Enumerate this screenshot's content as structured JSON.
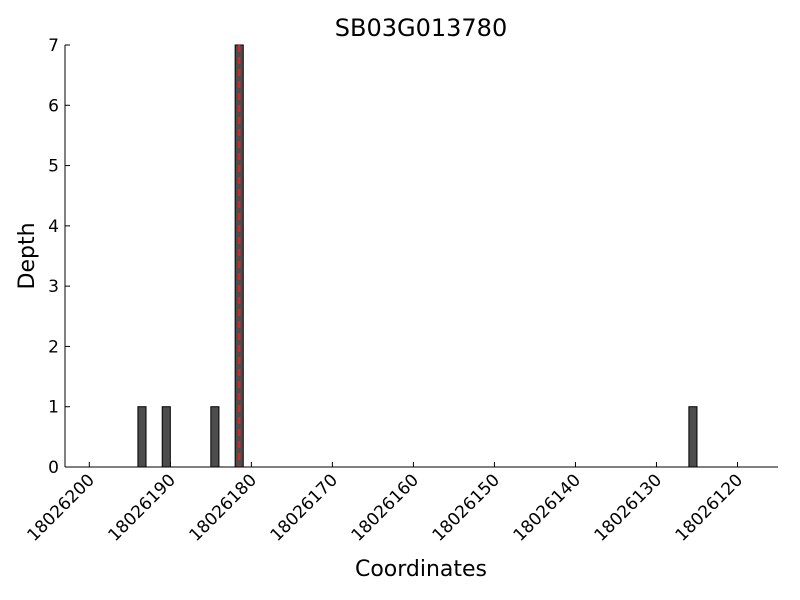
{
  "chart_data": {
    "type": "bar",
    "title": "SB03G013780",
    "x_label": "Coordinates",
    "y_label": "Depth",
    "x": [
      18026194,
      18026191,
      18026185,
      18026182,
      18026126
    ],
    "values": [
      1,
      1,
      1,
      7,
      1
    ],
    "color": "#4d4d4d",
    "xlim": [
      18026203,
      18026115
    ],
    "xticks": [
      18026200,
      18026190,
      18026180,
      18026170,
      18026160,
      18026150,
      18026140,
      18026130,
      18026120
    ],
    "ylim": [
      0,
      7
    ],
    "yticks": [
      0,
      1,
      2,
      3,
      4,
      5,
      6,
      7
    ],
    "marker_line": {
      "x": 18026181.5,
      "color": "#d62728"
    }
  }
}
